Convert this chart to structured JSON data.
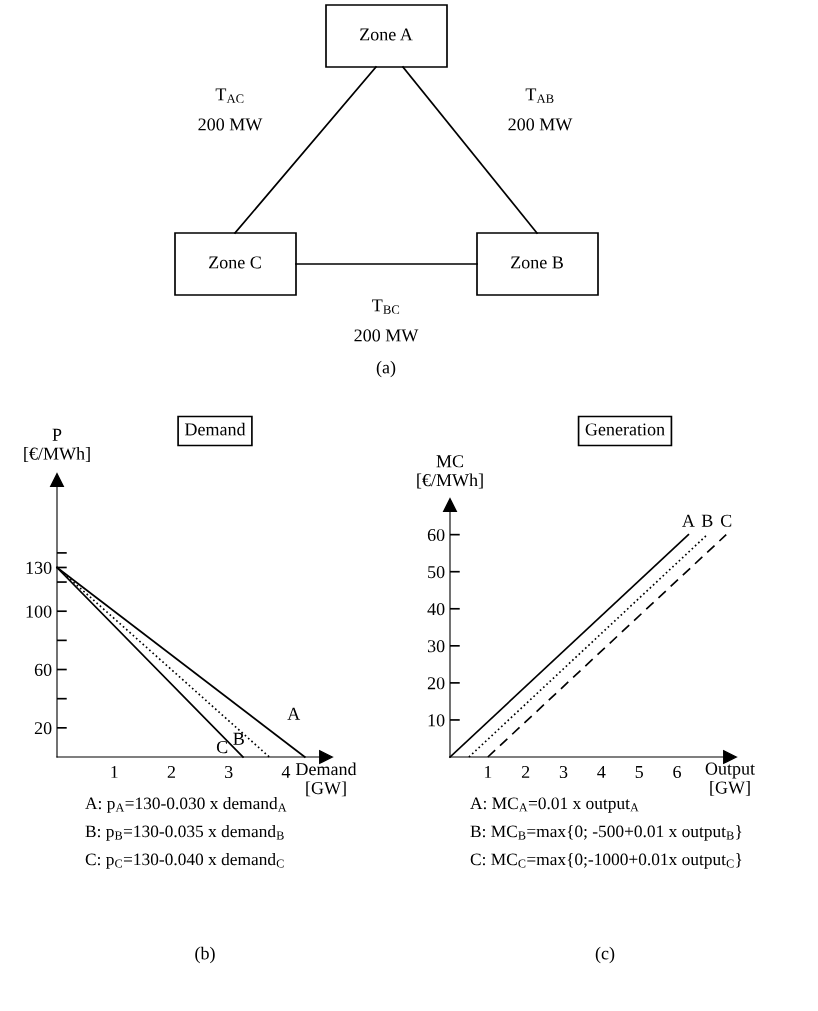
{
  "chart_data": [
    {
      "type": "other",
      "annotations": [
        "Zone A",
        "Zone C",
        "Zone B",
        "T$_{AC}$",
        "200 MW",
        "T$_{AB}$",
        "200 MW",
        "T$_{BC}$",
        "200 MW",
        "(a)"
      ]
    },
    {
      "type": "line",
      "title": "Demand",
      "ylabel": "P\n[€/MWh]",
      "xlabel": "Demand\n[GW]",
      "xlim": [
        0,
        4.7
      ],
      "ylim": [
        0,
        190
      ],
      "xticks": [
        1,
        2,
        3,
        4
      ],
      "yticks": [
        20,
        {
          "value": 40,
          "label": null
        },
        60,
        {
          "value": 80,
          "label": null
        },
        100,
        {
          "value": 120,
          "label": null
        },
        130,
        {
          "value": 140,
          "label": null
        }
      ],
      "series": [
        {
          "name": "A",
          "color": "#000000",
          "line_style": "solid",
          "x": [
            0,
            4.33
          ],
          "values": [
            130,
            0
          ]
        },
        {
          "name": "B",
          "color": "#000000",
          "line_style": "dotted",
          "x": [
            0,
            3.71
          ],
          "values": [
            130,
            0
          ]
        },
        {
          "name": "C",
          "color": "#000000",
          "line_style": "solid",
          "x": [
            0,
            3.25
          ],
          "values": [
            130,
            0
          ]
        }
      ],
      "annotations": [
        "A: p$_{A}$=130-0.030 x demand$_{A}$",
        "B: p$_{B}$=130-0.035 x demand$_{B}$",
        "C: p$_{C}$=130-0.040 x demand$_{C}$",
        "(b)"
      ]
    },
    {
      "type": "line",
      "title": "Generation",
      "ylabel": "MC\n[€/MWh]",
      "xlabel": "Output\n[GW]",
      "xlim": [
        0,
        7.4
      ],
      "ylim": [
        0,
        68
      ],
      "xticks": [
        1,
        2,
        3,
        4,
        5,
        6
      ],
      "yticks": [
        10,
        20,
        30,
        40,
        50,
        60
      ],
      "series": [
        {
          "name": "A",
          "color": "#000000",
          "line_style": "solid",
          "x": [
            0,
            6.3
          ],
          "values": [
            0,
            60
          ]
        },
        {
          "name": "B",
          "color": "#000000",
          "line_style": "dotted",
          "x": [
            0.5,
            6.8
          ],
          "values": [
            0,
            60
          ]
        },
        {
          "name": "C",
          "color": "#000000",
          "line_style": "dashed",
          "x": [
            1,
            7.3
          ],
          "values": [
            0,
            60
          ]
        }
      ],
      "annotations": [
        "A: MC$_{A}$=0.01 x output$_{A}$",
        "B: MC$_{B}$=max{0; -500+0.01 x output$_{B}$}",
        "C: MC$_{C}$=max{0;-1000+0.01x output$_{C}$}",
        "(c)"
      ]
    }
  ]
}
